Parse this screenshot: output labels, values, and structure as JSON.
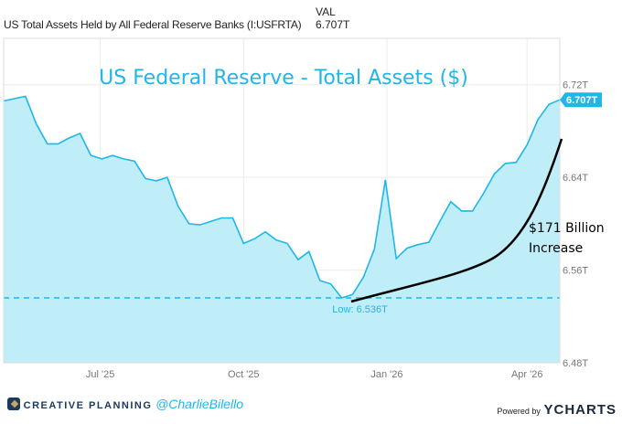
{
  "header": {
    "series_label": "US Total Assets Held by All Federal Reserve Banks (I:USFRTA)",
    "col_header": "VAL",
    "value": "6.707T"
  },
  "footer": {
    "brand": "CREATIVE PLANNING",
    "handle": "@CharlieBilello",
    "powered_by": "Powered by",
    "ycharts": "YCHARTS"
  },
  "colors": {
    "line": "#1fb6ea",
    "fill": "#bfeef9",
    "annotation": "#000000"
  },
  "chart_data": {
    "type": "area",
    "title": "US Federal Reserve - Total Assets ($)",
    "frequency": "weekly",
    "start": "2025-04-30",
    "values": [
      6.706,
      6.708,
      6.71,
      6.686,
      6.669,
      6.669,
      6.674,
      6.678,
      6.659,
      6.656,
      6.659,
      6.656,
      6.654,
      6.639,
      6.637,
      6.64,
      6.615,
      6.6,
      6.599,
      6.602,
      6.605,
      6.605,
      6.583,
      6.587,
      6.593,
      6.586,
      6.583,
      6.569,
      6.576,
      6.551,
      6.548,
      6.536,
      6.539,
      6.554,
      6.578,
      6.638,
      6.57,
      6.579,
      6.582,
      6.584,
      6.602,
      6.619,
      6.611,
      6.611,
      6.626,
      6.643,
      6.652,
      6.653,
      6.668,
      6.69,
      6.703,
      6.707
    ],
    "ylim": [
      6.48,
      6.76
    ],
    "yticks": [
      {
        "v": 6.48,
        "label": "6.48T"
      },
      {
        "v": 6.56,
        "label": "6.56T"
      },
      {
        "v": 6.64,
        "label": "6.64T"
      },
      {
        "v": 6.72,
        "label": "6.72T"
      }
    ],
    "xticks": [
      {
        "date": "2025-07-01",
        "label": "Jul '25"
      },
      {
        "date": "2025-10-01",
        "label": "Oct '25"
      },
      {
        "date": "2026-01-01",
        "label": "Jan '26"
      },
      {
        "date": "2026-04-01",
        "label": "Apr '26"
      }
    ],
    "xlim": [
      "2025-04-30",
      "2026-04-22"
    ],
    "grid": true,
    "low": {
      "value": 6.536,
      "label": "Low: 6.536T"
    },
    "last": {
      "value": 6.707,
      "label": "6.707T"
    },
    "annotation": {
      "line1": "$171 Billion",
      "line2": "Increase"
    }
  }
}
